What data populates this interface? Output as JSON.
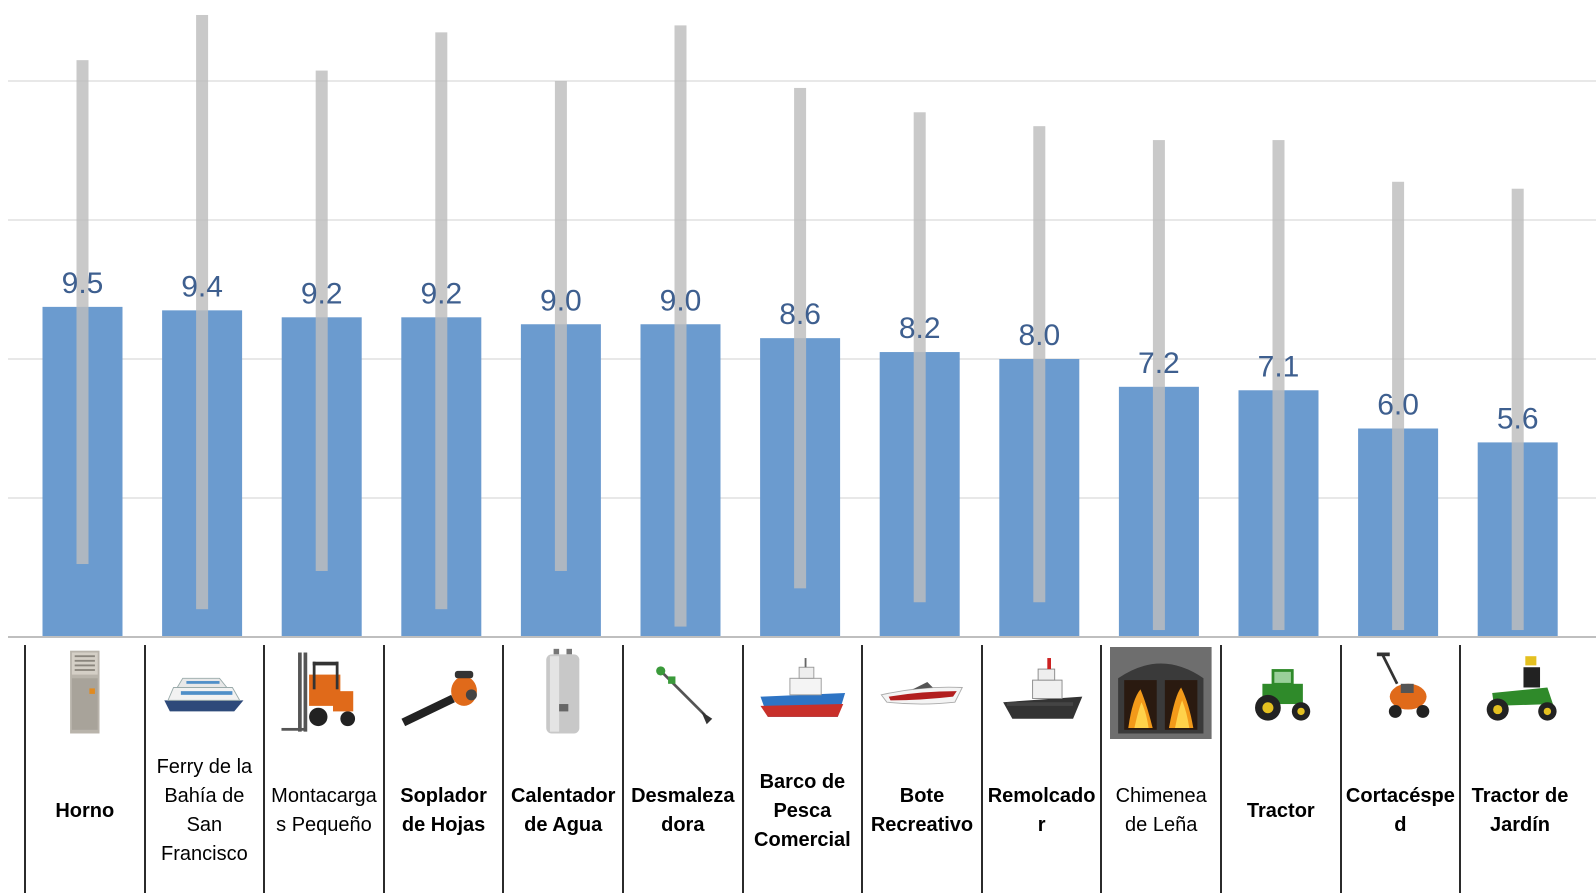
{
  "chart_data": {
    "type": "bar",
    "title": "",
    "xlabel": "",
    "ylabel": "",
    "ylim": [
      0,
      23
    ],
    "grid": true,
    "categories": [
      "Horno",
      "Ferry de la Bahía de San Francisco",
      "Montacargas Pequeño",
      "Soplador de Hojas",
      "Calentador de Agua",
      "Desmalezadora",
      "Barco de Pesca Comercial",
      "Bote Recreativo",
      "Remolcador",
      "Chimenea de Leña",
      "Tractor",
      "Cortacésped",
      "Tractor de Jardín"
    ],
    "category_labels": [
      "Horno",
      "Ferry de la\nBahía de\nSan\nFrancisco",
      "Montacarga\ns Pequeño",
      "Soplador\nde Hojas",
      "Calentador\nde Agua",
      "Desmaleza\ndora",
      "Barco de\nPesca\nComercial",
      "Bote\nRecreativo",
      "Remolcado\nr",
      "Chimenea\nde Leña",
      "Tractor",
      "Cortacéspe\nd",
      "Tractor de\nJardín"
    ],
    "bold_labels": [
      true,
      false,
      false,
      true,
      true,
      true,
      true,
      true,
      true,
      false,
      true,
      true,
      true
    ],
    "values": [
      9.5,
      9.4,
      9.2,
      9.2,
      9.0,
      9.0,
      8.6,
      8.2,
      8.0,
      7.2,
      7.1,
      6.0,
      5.6
    ],
    "value_labels": [
      "9.5",
      "9.4",
      "9.2",
      "9.2",
      "9.0",
      "9.0",
      "8.6",
      "8.2",
      "8.0",
      "7.2",
      "7.1",
      "6.0",
      "5.6"
    ],
    "range_low": [
      2.1,
      0.8,
      1.9,
      0.8,
      1.9,
      0.3,
      1.4,
      1.0,
      1.0,
      0.2,
      0.2,
      0.2,
      0.2
    ],
    "range_high": [
      16.6,
      17.9,
      16.3,
      17.4,
      16.0,
      17.6,
      15.8,
      15.1,
      14.7,
      14.3,
      14.3,
      13.1,
      12.9
    ],
    "icons": [
      "furnace-icon",
      "ferry-icon",
      "forklift-icon",
      "leaf-blower-icon",
      "water-heater-icon",
      "string-trimmer-icon",
      "fishing-boat-icon",
      "speedboat-icon",
      "tugboat-icon",
      "fireplace-icon",
      "tractor-icon",
      "lawn-mower-icon",
      "garden-tractor-icon"
    ]
  },
  "colors": {
    "bar": "#6b9bcf",
    "value_label": "#3e5f8f",
    "range_bar": "#bdbdbd",
    "gridline": "#d9d9d9",
    "axis": "#bfbfbf",
    "divider": "#2b2b2b"
  }
}
